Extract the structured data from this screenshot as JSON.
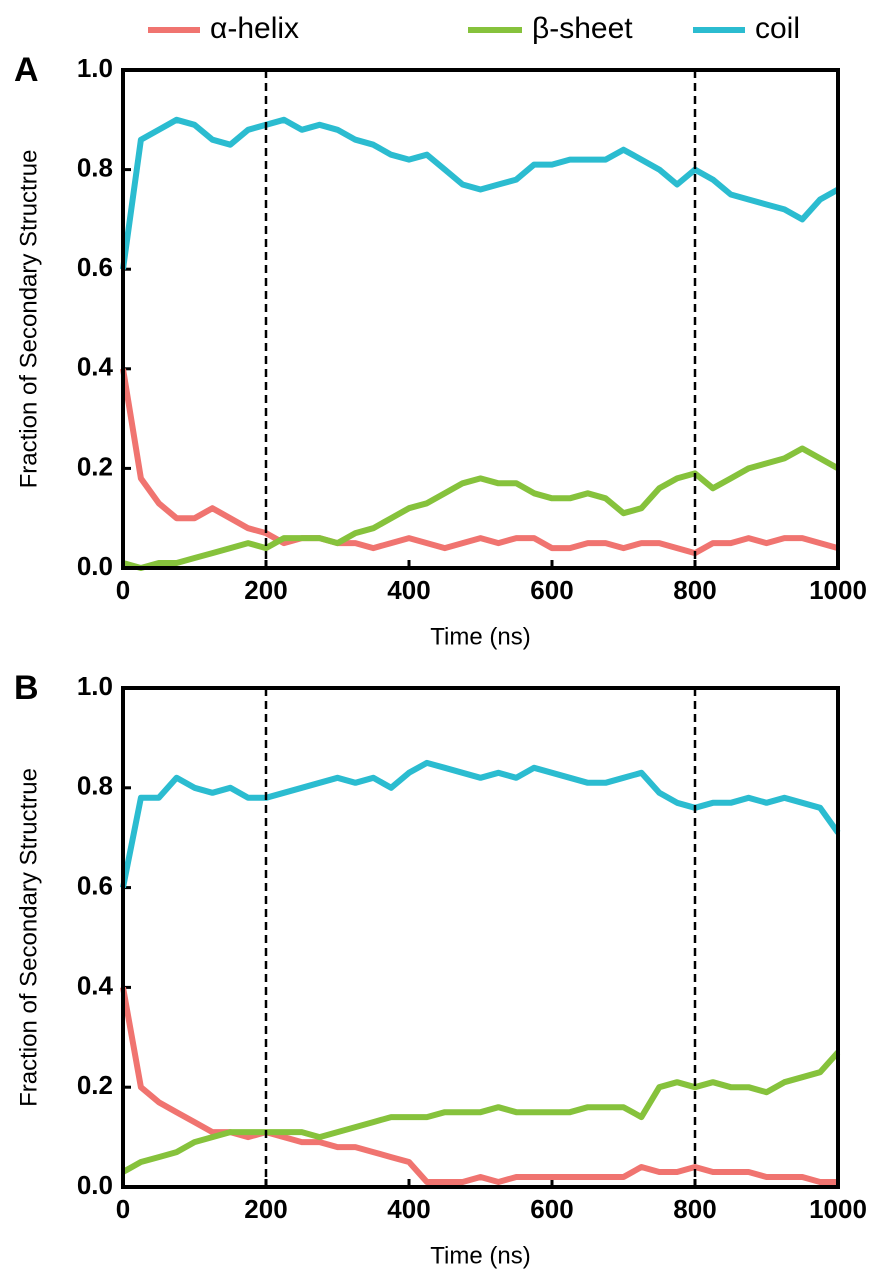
{
  "chart_data": [
    {
      "type": "line",
      "label": "A",
      "xlabel": "Time (ns)",
      "ylabel": "Fraction of Secondary Structrue",
      "x": [
        0,
        25,
        50,
        75,
        100,
        125,
        150,
        175,
        200,
        225,
        250,
        275,
        300,
        325,
        350,
        375,
        400,
        425,
        450,
        475,
        500,
        525,
        550,
        575,
        600,
        625,
        650,
        675,
        700,
        725,
        750,
        775,
        800,
        825,
        850,
        875,
        900,
        925,
        950,
        975,
        1000
      ],
      "series": [
        {
          "name": "α-helix",
          "color": "#f07470",
          "values": [
            0.4,
            0.18,
            0.13,
            0.1,
            0.1,
            0.12,
            0.1,
            0.08,
            0.07,
            0.05,
            0.06,
            0.06,
            0.05,
            0.05,
            0.04,
            0.05,
            0.06,
            0.05,
            0.04,
            0.05,
            0.06,
            0.05,
            0.06,
            0.06,
            0.04,
            0.04,
            0.05,
            0.05,
            0.04,
            0.05,
            0.05,
            0.04,
            0.03,
            0.05,
            0.05,
            0.06,
            0.05,
            0.06,
            0.06,
            0.05,
            0.04
          ]
        },
        {
          "name": "β-sheet",
          "color": "#86c23c",
          "values": [
            0.01,
            0.0,
            0.01,
            0.01,
            0.02,
            0.03,
            0.04,
            0.05,
            0.04,
            0.06,
            0.06,
            0.06,
            0.05,
            0.07,
            0.08,
            0.1,
            0.12,
            0.13,
            0.15,
            0.17,
            0.18,
            0.17,
            0.17,
            0.15,
            0.14,
            0.14,
            0.15,
            0.14,
            0.11,
            0.12,
            0.16,
            0.18,
            0.19,
            0.16,
            0.18,
            0.2,
            0.21,
            0.22,
            0.24,
            0.22,
            0.2
          ]
        },
        {
          "name": "coil",
          "color": "#2bbcd0",
          "values": [
            0.6,
            0.86,
            0.88,
            0.9,
            0.89,
            0.86,
            0.85,
            0.88,
            0.89,
            0.9,
            0.88,
            0.89,
            0.88,
            0.86,
            0.85,
            0.83,
            0.82,
            0.83,
            0.8,
            0.77,
            0.76,
            0.77,
            0.78,
            0.81,
            0.81,
            0.82,
            0.82,
            0.82,
            0.84,
            0.82,
            0.8,
            0.77,
            0.8,
            0.78,
            0.75,
            0.74,
            0.73,
            0.72,
            0.7,
            0.74,
            0.76
          ]
        }
      ],
      "vlines": [
        200,
        800
      ],
      "xlim": [
        0,
        1000
      ],
      "xticks": [
        0,
        200,
        400,
        600,
        800,
        1000
      ],
      "ylim": [
        0,
        1
      ],
      "yticks": [
        {
          "value": 0,
          "label": "0.0"
        },
        0.2,
        0.4,
        0.6,
        0.8,
        {
          "value": 1,
          "label": "1.0"
        }
      ]
    },
    {
      "type": "line",
      "label": "B",
      "xlabel": "Time (ns)",
      "ylabel": "Fraction of Secondary Structrue",
      "x": [
        0,
        25,
        50,
        75,
        100,
        125,
        150,
        175,
        200,
        225,
        250,
        275,
        300,
        325,
        350,
        375,
        400,
        425,
        450,
        475,
        500,
        525,
        550,
        575,
        600,
        625,
        650,
        675,
        700,
        725,
        750,
        775,
        800,
        825,
        850,
        875,
        900,
        925,
        950,
        975,
        1000
      ],
      "series": [
        {
          "color": "#f07470",
          "values": [
            0.4,
            0.2,
            0.17,
            0.15,
            0.13,
            0.11,
            0.11,
            0.1,
            0.11,
            0.1,
            0.09,
            0.09,
            0.08,
            0.08,
            0.07,
            0.06,
            0.05,
            0.01,
            0.01,
            0.01,
            0.02,
            0.01,
            0.02,
            0.02,
            0.02,
            0.02,
            0.02,
            0.02,
            0.02,
            0.04,
            0.03,
            0.03,
            0.04,
            0.03,
            0.03,
            0.03,
            0.02,
            0.02,
            0.02,
            0.01,
            0.01
          ]
        },
        {
          "color": "#86c23c",
          "values": [
            0.03,
            0.05,
            0.06,
            0.07,
            0.09,
            0.1,
            0.11,
            0.11,
            0.11,
            0.11,
            0.11,
            0.1,
            0.11,
            0.12,
            0.13,
            0.14,
            0.14,
            0.14,
            0.15,
            0.15,
            0.15,
            0.16,
            0.15,
            0.15,
            0.15,
            0.15,
            0.16,
            0.16,
            0.16,
            0.14,
            0.2,
            0.21,
            0.2,
            0.21,
            0.2,
            0.2,
            0.19,
            0.21,
            0.22,
            0.23,
            0.27
          ]
        },
        {
          "color": "#2bbcd0",
          "values": [
            0.6,
            0.78,
            0.78,
            0.82,
            0.8,
            0.79,
            0.8,
            0.78,
            0.78,
            0.79,
            0.8,
            0.81,
            0.82,
            0.81,
            0.82,
            0.8,
            0.83,
            0.85,
            0.84,
            0.83,
            0.82,
            0.83,
            0.82,
            0.84,
            0.83,
            0.82,
            0.81,
            0.81,
            0.82,
            0.83,
            0.79,
            0.77,
            0.76,
            0.77,
            0.77,
            0.78,
            0.77,
            0.78,
            0.77,
            0.76,
            0.71
          ]
        }
      ],
      "vlines": [
        200,
        800
      ],
      "xlim": [
        0,
        1000
      ],
      "xticks": [
        0,
        200,
        400,
        600,
        800,
        1000
      ],
      "ylim": [
        0,
        1
      ],
      "yticks": [
        {
          "value": 0,
          "label": "0.0"
        },
        0.2,
        0.4,
        0.6,
        0.8,
        {
          "value": 1,
          "label": "1.0"
        }
      ]
    }
  ]
}
